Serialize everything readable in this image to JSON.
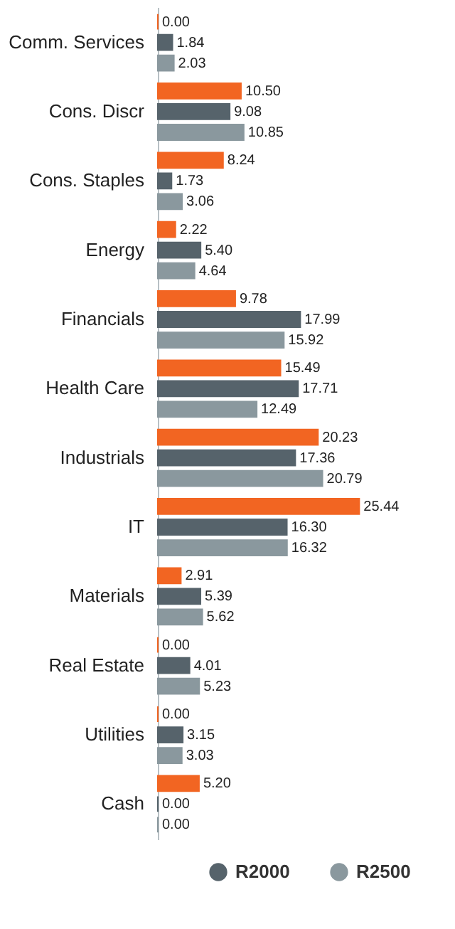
{
  "chart_data": {
    "type": "bar",
    "orientation": "horizontal",
    "categories": [
      "Comm. Services",
      "Cons. Discr",
      "Cons. Staples",
      "Energy",
      "Financials",
      "Health Care",
      "Industrials",
      "IT",
      "Materials",
      "Real Estate",
      "Utilities",
      "Cash"
    ],
    "series": [
      {
        "color": "#f26522",
        "values": [
          0.0,
          10.5,
          8.24,
          2.22,
          9.78,
          15.49,
          20.23,
          25.44,
          2.91,
          0.0,
          0.0,
          5.2
        ],
        "value_labels": [
          "0.00",
          "10.50",
          "8.24",
          "2.22",
          "9.78",
          "15.49",
          "20.23",
          "25.44",
          "2.91",
          "0.00",
          "0.00",
          "5.20"
        ]
      },
      {
        "name": "R2000",
        "color": "#56636b",
        "values": [
          1.84,
          9.08,
          1.73,
          5.4,
          17.99,
          17.71,
          17.36,
          16.3,
          5.39,
          4.01,
          3.15,
          0.0
        ],
        "value_labels": [
          "1.84",
          "9.08",
          "1.73",
          "5.40",
          "17.99",
          "17.71",
          "17.36",
          "16.30",
          "5.39",
          "4.01",
          "3.15",
          "0.00"
        ]
      },
      {
        "name": "R2500",
        "color": "#8a989e",
        "values": [
          2.03,
          10.85,
          3.06,
          4.64,
          15.92,
          12.49,
          20.79,
          16.32,
          5.62,
          5.23,
          3.03,
          0.0
        ],
        "value_labels": [
          "2.03",
          "10.85",
          "3.06",
          "4.64",
          "15.92",
          "12.49",
          "20.79",
          "16.32",
          "5.62",
          "5.23",
          "3.03",
          "0.00"
        ]
      }
    ],
    "grid": false,
    "legend": "bottom"
  }
}
